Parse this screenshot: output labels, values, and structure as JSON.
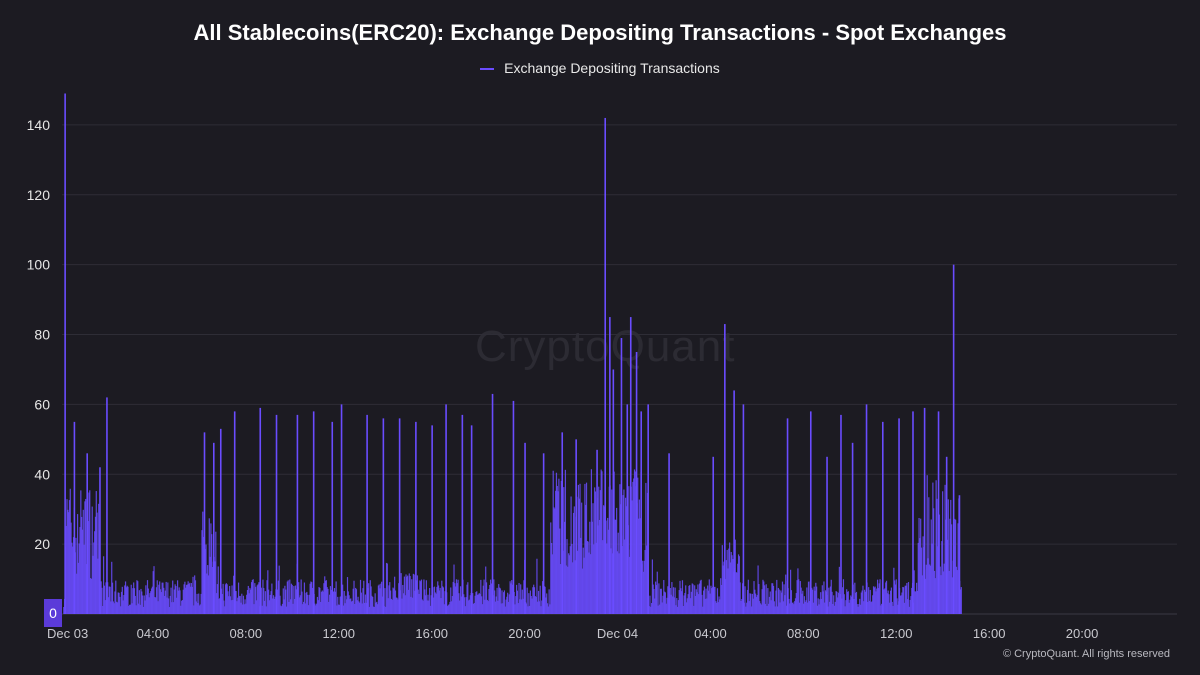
{
  "chart_data": {
    "type": "bar",
    "title": "All Stablecoins(ERC20): Exchange Depositing Transactions - Spot Exchanges",
    "legend": [
      {
        "name": "Exchange Depositing Transactions",
        "color": "#6a4cff"
      }
    ],
    "legend_position": "top-center",
    "xlabel": "",
    "ylabel": "",
    "ylim": [
      0,
      150
    ],
    "y_ticks": [
      140,
      120,
      100,
      80,
      60,
      40,
      20
    ],
    "x_tick_labels": [
      "Dec 03",
      "04:00",
      "08:00",
      "12:00",
      "16:00",
      "20:00",
      "Dec 04",
      "04:00",
      "08:00",
      "12:00",
      "16:00",
      "20:00"
    ],
    "x_unit": "hours since Dec 03 00:00",
    "x_range_hours": [
      0,
      48
    ],
    "grid": "horizontal",
    "series": [
      {
        "name": "Exchange Depositing Transactions",
        "color": "#6a4cff",
        "spikes": [
          [
            0.1,
            149
          ],
          [
            0.5,
            55
          ],
          [
            1.05,
            46
          ],
          [
            1.6,
            42
          ],
          [
            1.9,
            62
          ],
          [
            6.1,
            52
          ],
          [
            6.5,
            49
          ],
          [
            6.8,
            53
          ],
          [
            7.4,
            58
          ],
          [
            8.5,
            59
          ],
          [
            9.2,
            57
          ],
          [
            10.1,
            57
          ],
          [
            10.8,
            58
          ],
          [
            11.6,
            55
          ],
          [
            12.0,
            60
          ],
          [
            13.1,
            57
          ],
          [
            13.8,
            56
          ],
          [
            14.5,
            56
          ],
          [
            15.2,
            55
          ],
          [
            15.9,
            54
          ],
          [
            16.5,
            60
          ],
          [
            17.2,
            57
          ],
          [
            17.6,
            54
          ],
          [
            18.5,
            63
          ],
          [
            19.4,
            61
          ],
          [
            19.9,
            49
          ],
          [
            20.7,
            46
          ],
          [
            21.5,
            52
          ],
          [
            22.1,
            50
          ],
          [
            23.0,
            47
          ],
          [
            23.35,
            142
          ],
          [
            23.55,
            85
          ],
          [
            23.7,
            70
          ],
          [
            24.05,
            79
          ],
          [
            24.3,
            60
          ],
          [
            24.45,
            85
          ],
          [
            24.7,
            75
          ],
          [
            24.9,
            58
          ],
          [
            25.2,
            60
          ],
          [
            26.1,
            46
          ],
          [
            28.0,
            45
          ],
          [
            28.5,
            83
          ],
          [
            28.9,
            64
          ],
          [
            29.3,
            60
          ],
          [
            31.2,
            56
          ],
          [
            32.2,
            58
          ],
          [
            32.9,
            45
          ],
          [
            33.5,
            57
          ],
          [
            34.0,
            49
          ],
          [
            34.6,
            60
          ],
          [
            35.3,
            55
          ],
          [
            36.0,
            56
          ],
          [
            36.6,
            58
          ],
          [
            37.1,
            59
          ],
          [
            37.7,
            58
          ],
          [
            38.05,
            45
          ],
          [
            38.35,
            100
          ],
          [
            38.6,
            34
          ]
        ],
        "baseline": "dense bars mostly between 2 and 15; elevated clusters 20-45 around 00:00-01:30 Dec 03, 06:00-06:30, 21:00-25:00, 04:30-05:00 Dec 04 and 14:00-16:40 Dec 04; data ends near 16:40 Dec 04"
      }
    ],
    "zero_label": "0",
    "watermark": "CryptoQuant",
    "copyright": "© CryptoQuant. All rights reserved"
  }
}
